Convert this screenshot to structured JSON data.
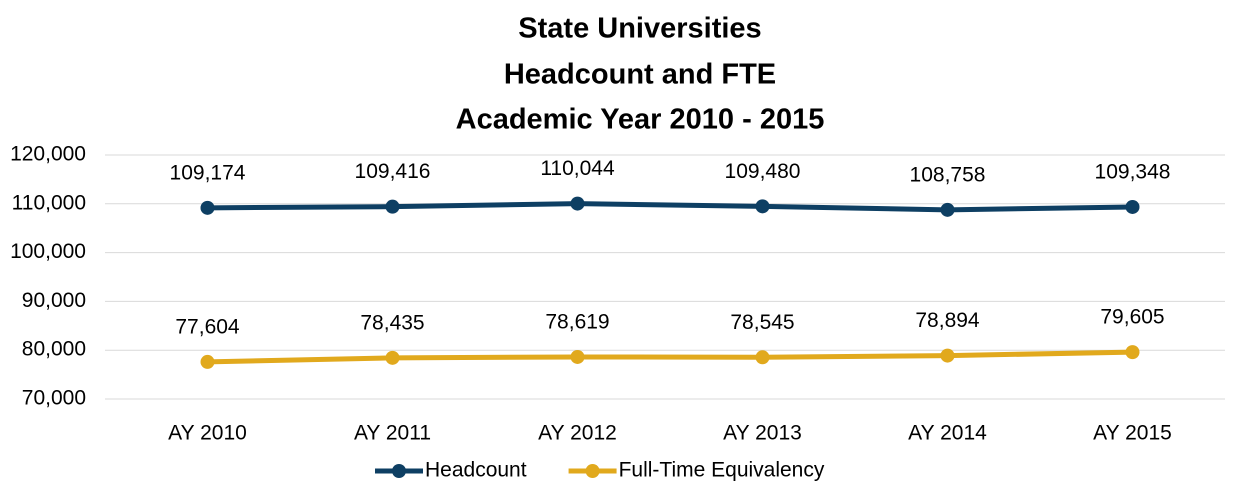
{
  "chart_data": {
    "type": "line",
    "title": [
      "State Universities",
      "Headcount and FTE",
      "Academic Year 2010 - 2015"
    ],
    "categories": [
      "AY 2010",
      "AY 2011",
      "AY 2012",
      "AY 2013",
      "AY 2014",
      "AY 2015"
    ],
    "series": [
      {
        "name": "Headcount",
        "color": "#0e3f63",
        "values": [
          109174,
          109416,
          110044,
          109480,
          108758,
          109348
        ],
        "value_labels": [
          "109,174",
          "109,416",
          "110,044",
          "109,480",
          "108,758",
          "109,348"
        ]
      },
      {
        "name": "Full-Time Equivalency",
        "color": "#e1a91d",
        "values": [
          77604,
          78435,
          78619,
          78545,
          78894,
          79605
        ],
        "value_labels": [
          "77,604",
          "78,435",
          "78,619",
          "78,545",
          "78,894",
          "79,605"
        ]
      }
    ],
    "ylim": [
      70000,
      120000
    ],
    "yticks": [
      {
        "value": 70000,
        "label": "70,000"
      },
      {
        "value": 80000,
        "label": "80,000"
      },
      {
        "value": 90000,
        "label": "90,000"
      },
      {
        "value": 100000,
        "label": "100,000"
      },
      {
        "value": 110000,
        "label": "110,000"
      },
      {
        "value": 120000,
        "label": "120,000"
      }
    ],
    "grid": true,
    "legend": "bottom"
  }
}
